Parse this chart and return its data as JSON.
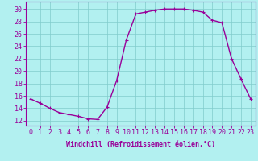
{
  "x": [
    0,
    1,
    2,
    3,
    4,
    5,
    6,
    7,
    8,
    9,
    10,
    11,
    12,
    13,
    14,
    15,
    16,
    17,
    18,
    19,
    20,
    21,
    22,
    23
  ],
  "y": [
    15.5,
    14.8,
    14.0,
    13.3,
    13.0,
    12.7,
    12.3,
    12.2,
    14.2,
    18.5,
    25.0,
    29.2,
    29.5,
    29.8,
    30.0,
    30.0,
    30.0,
    29.8,
    29.5,
    28.2,
    27.8,
    22.0,
    18.7,
    15.5
  ],
  "line_color": "#990099",
  "marker": "+",
  "marker_size": 3,
  "bg_color": "#b2f0f0",
  "grid_color": "#80cccc",
  "xlabel": "Windchill (Refroidissement éolien,°C)",
  "yticks": [
    12,
    14,
    16,
    18,
    20,
    22,
    24,
    26,
    28,
    30
  ],
  "ylim": [
    11.2,
    31.2
  ],
  "xlim": [
    -0.5,
    23.5
  ],
  "xlabel_fontsize": 6,
  "tick_fontsize": 6,
  "line_width": 1.0
}
